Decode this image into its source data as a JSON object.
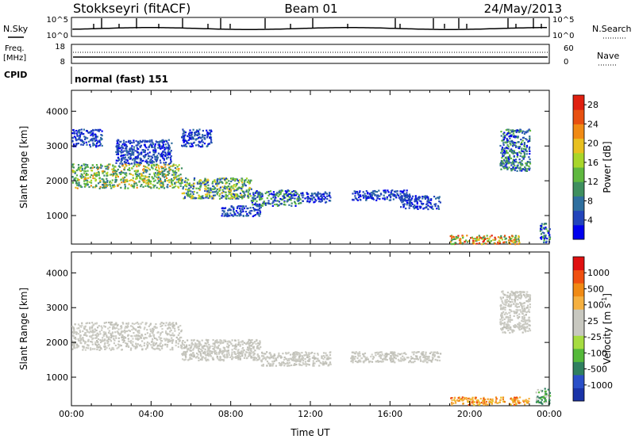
{
  "header": {
    "station": "Stokkseyri (fitACF)",
    "beam": "Beam 01",
    "date": "24/May/2013"
  },
  "top_panels": {
    "nsky_label": "N.Sky",
    "nsearch_label": "N.Search",
    "noise_ticks": [
      "10^5",
      "10^0"
    ],
    "freq_label": "Freq.",
    "freq_unit": "[MHz]",
    "freq_ticks": [
      "18",
      "8"
    ],
    "nave_label": "Nave",
    "nave_ticks": [
      "60",
      "0"
    ],
    "cpid_label": "CPID",
    "cpid_value": "normal (fast) 151"
  },
  "chart_data": [
    {
      "type": "heatmap",
      "name": "power-panel",
      "ylabel": "Slant Range [km]",
      "xlabel": "",
      "xlim": [
        0,
        24
      ],
      "ylim": [
        180,
        4600
      ],
      "xtick_labels": [
        "00:00",
        "04:00",
        "08:00",
        "12:00",
        "16:00",
        "20:00",
        "00:00"
      ],
      "yticks": [
        1000,
        2000,
        3000,
        4000
      ],
      "colorbar": {
        "label": "Power [dB]",
        "tick_labels": [
          "4",
          "8",
          "12",
          "16",
          "20",
          "24",
          "28"
        ],
        "colors": [
          "#0000ee",
          "#2244bb",
          "#2f6f9f",
          "#3f8f5f",
          "#5fb83f",
          "#a8d62a",
          "#e8c020",
          "#f08a14",
          "#e85010",
          "#e02010"
        ]
      },
      "regions": [
        {
          "t": [
            0.0,
            5.5
          ],
          "r": [
            1800,
            2500
          ],
          "level": "high"
        },
        {
          "t": [
            5.5,
            9.0
          ],
          "r": [
            1500,
            2100
          ],
          "level": "mid-high"
        },
        {
          "t": [
            9.0,
            11.5
          ],
          "r": [
            1300,
            1750
          ],
          "level": "mid"
        },
        {
          "t": [
            11.5,
            13.0
          ],
          "r": [
            1400,
            1700
          ],
          "level": "low"
        },
        {
          "t": [
            0.0,
            1.5
          ],
          "r": [
            3000,
            3500
          ],
          "level": "low"
        },
        {
          "t": [
            2.2,
            5.0
          ],
          "r": [
            2500,
            3200
          ],
          "level": "low"
        },
        {
          "t": [
            5.5,
            7.0
          ],
          "r": [
            3000,
            3500
          ],
          "level": "low"
        },
        {
          "t": [
            7.5,
            9.5
          ],
          "r": [
            1000,
            1300
          ],
          "level": "low"
        },
        {
          "t": [
            14.0,
            17.0
          ],
          "r": [
            1450,
            1750
          ],
          "level": "low"
        },
        {
          "t": [
            16.5,
            18.5
          ],
          "r": [
            1200,
            1600
          ],
          "level": "low"
        },
        {
          "t": [
            21.5,
            23.0
          ],
          "r": [
            2300,
            3500
          ],
          "level": "mid"
        },
        {
          "t": [
            19.0,
            22.5
          ],
          "r": [
            200,
            450
          ],
          "level": "mixed"
        },
        {
          "t": [
            23.5,
            24.0
          ],
          "r": [
            250,
            800
          ],
          "level": "mid"
        }
      ]
    },
    {
      "type": "heatmap",
      "name": "velocity-panel",
      "ylabel": "Slant Range [km]",
      "xlabel": "Time UT",
      "xlim": [
        0,
        24
      ],
      "ylim": [
        180,
        4600
      ],
      "xtick_labels": [
        "00:00",
        "04:00",
        "08:00",
        "12:00",
        "16:00",
        "20:00",
        "00:00"
      ],
      "yticks": [
        1000,
        2000,
        3000,
        4000
      ],
      "colorbar": {
        "label": "Velocity [m s",
        "label_sup": "-1",
        "label_end": "]",
        "tick_labels": [
          "1000",
          "500",
          "100",
          "25",
          "-25",
          "-100",
          "-500",
          "-1000"
        ],
        "colors": [
          "#1a33a8",
          "#2a4fc8",
          "#2f7f5f",
          "#55b93a",
          "#a6dc40",
          "#c8c8c0",
          "#c8c8c0",
          "#f5b040",
          "#f08a14",
          "#f05010",
          "#e01010"
        ]
      },
      "regions": [
        {
          "t": [
            0.0,
            5.5
          ],
          "r": [
            1800,
            2600
          ],
          "level": "gray"
        },
        {
          "t": [
            5.5,
            9.5
          ],
          "r": [
            1500,
            2100
          ],
          "level": "gray"
        },
        {
          "t": [
            9.5,
            13.0
          ],
          "r": [
            1350,
            1750
          ],
          "level": "gray"
        },
        {
          "t": [
            14.0,
            18.5
          ],
          "r": [
            1450,
            1750
          ],
          "level": "gray"
        },
        {
          "t": [
            21.5,
            23.0
          ],
          "r": [
            2300,
            3500
          ],
          "level": "gray"
        },
        {
          "t": [
            19.0,
            23.0
          ],
          "r": [
            220,
            450
          ],
          "level": "orange"
        },
        {
          "t": [
            23.3,
            24.0
          ],
          "r": [
            250,
            700
          ],
          "level": "green"
        }
      ]
    }
  ]
}
